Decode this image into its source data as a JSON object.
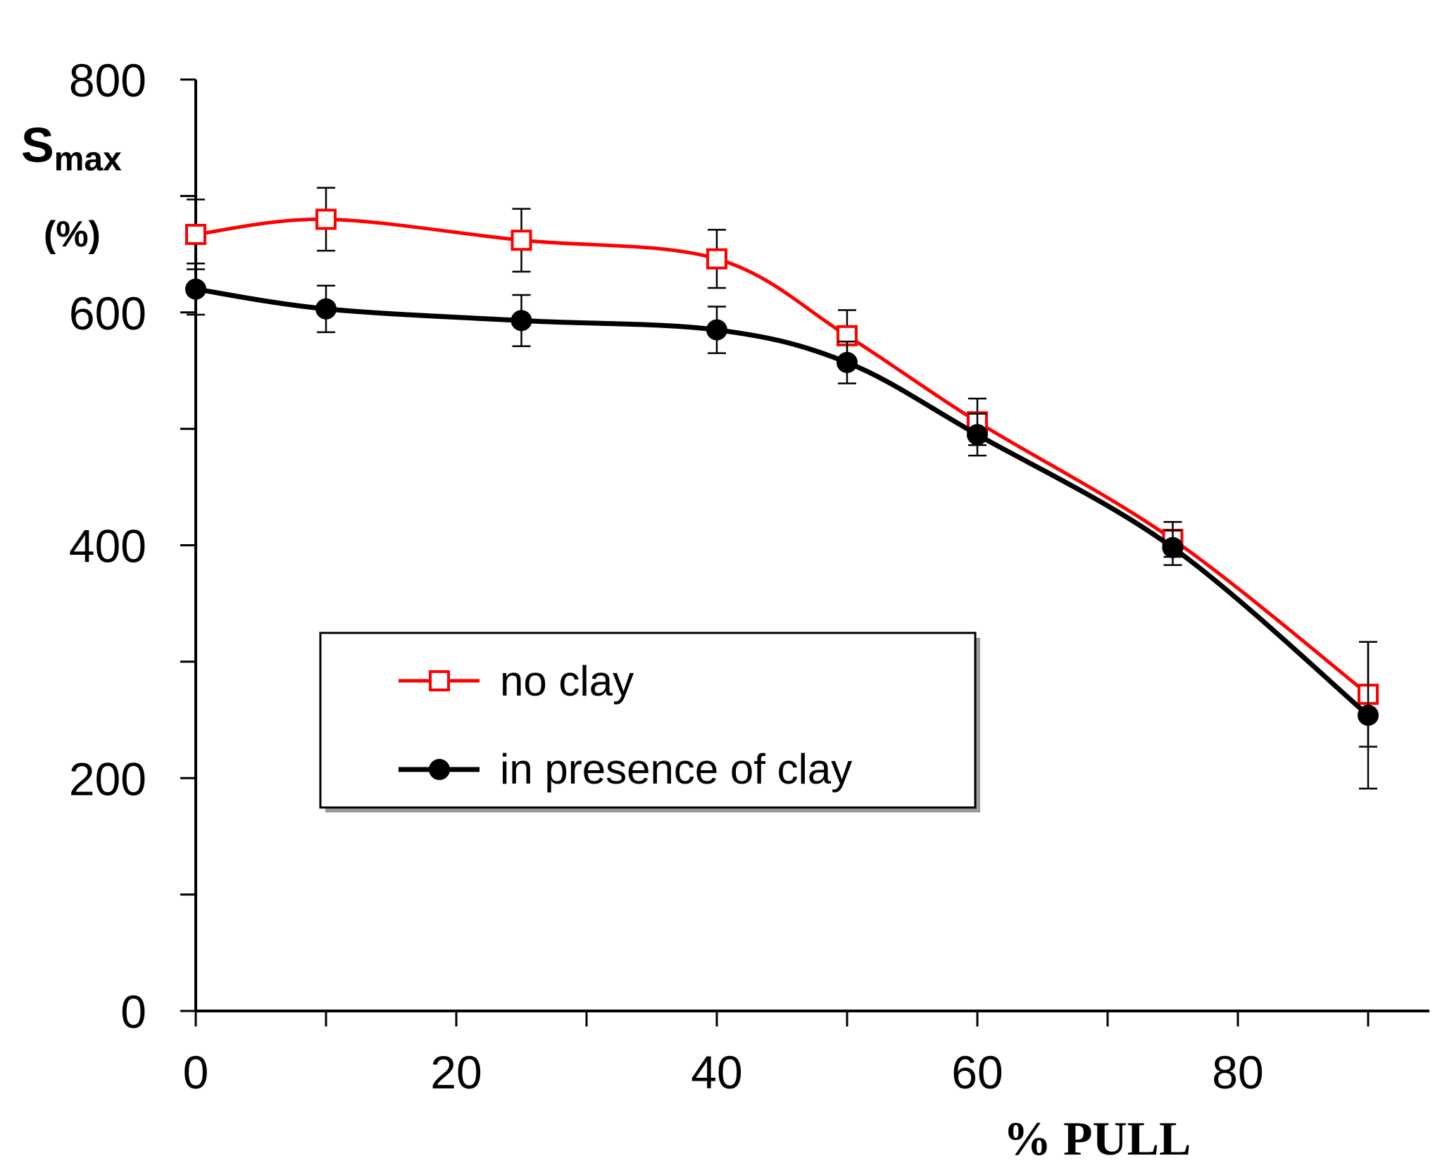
{
  "chart_data": {
    "type": "line",
    "title": "",
    "xlabel": "% PULL",
    "ylabel_main": "S",
    "ylabel_sub": "max",
    "ylabel_unit": "(%)",
    "xlim": [
      0,
      95
    ],
    "ylim": [
      0,
      800
    ],
    "x_ticks": [
      0,
      20,
      40,
      60,
      80
    ],
    "x_minor_ticks": [
      10,
      30,
      50,
      70,
      90
    ],
    "y_ticks": [
      0,
      200,
      400,
      600,
      800
    ],
    "y_minor_ticks": [
      100,
      300,
      500,
      700
    ],
    "legend": {
      "position": "center-left"
    },
    "series": [
      {
        "name": "no clay",
        "color": "#ff0000",
        "marker": "open-square",
        "x": [
          0,
          10,
          25,
          40,
          50,
          60,
          75,
          90
        ],
        "y": [
          667,
          680,
          662,
          646,
          580,
          506,
          405,
          272
        ],
        "err": [
          30,
          27,
          27,
          25,
          22,
          20,
          15,
          45
        ]
      },
      {
        "name": "in presence of clay",
        "color": "#000000",
        "marker": "filled-circle",
        "x": [
          0,
          10,
          25,
          40,
          50,
          60,
          75,
          90
        ],
        "y": [
          620,
          603,
          593,
          585,
          557,
          495,
          398,
          254
        ],
        "err": [
          22,
          20,
          22,
          20,
          18,
          18,
          15,
          63
        ]
      }
    ]
  }
}
